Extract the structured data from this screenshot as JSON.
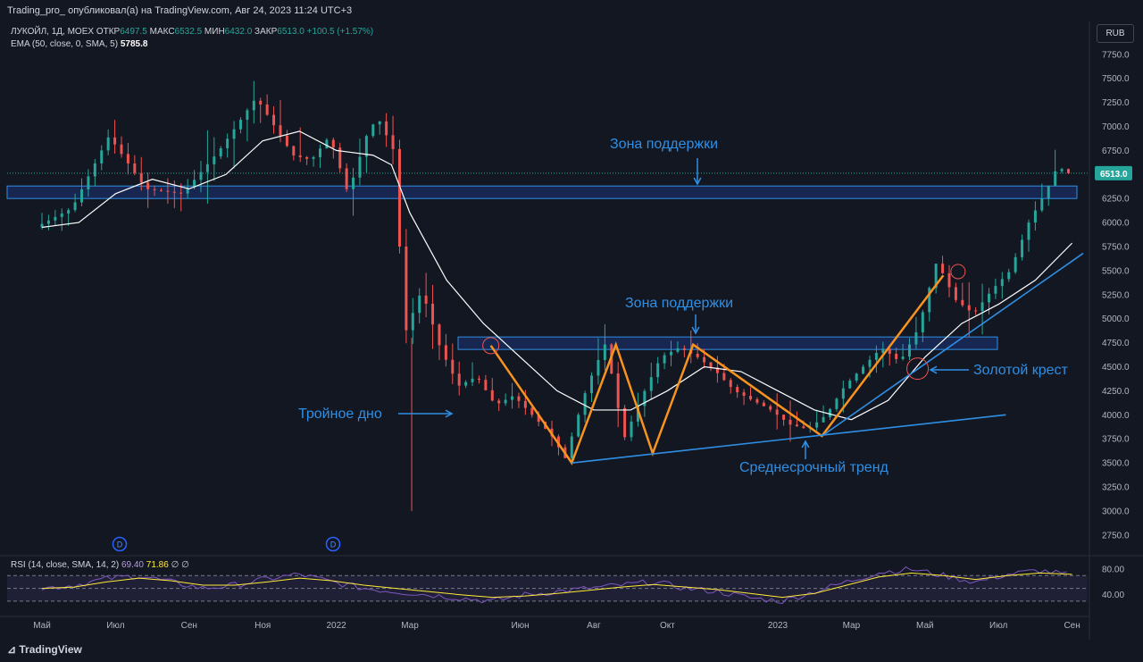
{
  "header": {
    "publisher_line": "Trading_pro_ опубликовал(а) на TradingView.com, Авг 24, 2023 11:24 UTC+3"
  },
  "legend": {
    "symbol": "ЛУКОЙЛ, 1Д, MOEX",
    "open_label": "ОТКР",
    "open_value": "6497.5",
    "high_label": "МАКС",
    "high_value": "6532.5",
    "low_label": "МИН",
    "low_value": "6432.0",
    "close_label": "ЗАКР",
    "close_value": "6513.0",
    "change": "+100.5 (+1.57%)",
    "ema_label": "EMA (50, close, 0, SMA, 5)",
    "ema_value": "5785.8"
  },
  "rsi_legend": {
    "label": "RSI (14, close, SMA, 14, 2)",
    "value1": "69.40",
    "value2": "71.86",
    "extra": "∅ ∅"
  },
  "currency_button": "RUB",
  "footer_logo": "TradingView",
  "colors": {
    "background": "#131722",
    "up": "#26a69a",
    "down": "#ef5350",
    "ema": "#ffffff",
    "pattern": "#f7931e",
    "trend": "#2f8fe5",
    "zone": "#2962ff"
  },
  "chart_data": {
    "type": "candlestick",
    "price_axis": {
      "ticks": [
        7750,
        7500,
        7250,
        7000,
        6750,
        6500,
        6250,
        6000,
        5750,
        5500,
        5250,
        5000,
        4750,
        4500,
        4250,
        4000,
        3750,
        3500,
        3250,
        3000,
        2750
      ],
      "tick_labels": [
        "7750.0",
        "7500.0",
        "7250.0",
        "7000.0",
        "6750.0",
        "6500.0",
        "6250.0",
        "6000.0",
        "5750.0",
        "5500.0",
        "5250.0",
        "5000.0",
        "4750.0",
        "4500.0",
        "4250.0",
        "4000.0",
        "3750.0",
        "3500.0",
        "3250.0",
        "3000.0",
        "2750.0"
      ],
      "last_price": 6513.0,
      "last_price_label": "6513.0"
    },
    "time_axis": {
      "labels": [
        {
          "text": "Май",
          "month_index": 0
        },
        {
          "text": "Июл",
          "month_index": 2
        },
        {
          "text": "Сен",
          "month_index": 4
        },
        {
          "text": "Ноя",
          "month_index": 6
        },
        {
          "text": "2022",
          "month_index": 8
        },
        {
          "text": "Мар",
          "month_index": 10
        },
        {
          "text": "Июн",
          "month_index": 13
        },
        {
          "text": "Авг",
          "month_index": 15
        },
        {
          "text": "Окт",
          "month_index": 17
        },
        {
          "text": "2023",
          "month_index": 20
        },
        {
          "text": "Мар",
          "month_index": 22
        },
        {
          "text": "Май",
          "month_index": 24
        },
        {
          "text": "Июл",
          "month_index": 26
        },
        {
          "text": "Сен",
          "month_index": 28
        }
      ]
    },
    "price_path": [
      [
        0,
        5950
      ],
      [
        1,
        6150
      ],
      [
        2,
        6900
      ],
      [
        3,
        6350
      ],
      [
        4,
        6300
      ],
      [
        5,
        6750
      ],
      [
        6,
        7300
      ],
      [
        7,
        6700
      ],
      [
        7.5,
        6650
      ],
      [
        8,
        6900
      ],
      [
        8.5,
        6300
      ],
      [
        9,
        6900
      ],
      [
        9.3,
        7100
      ],
      [
        9.8,
        6700
      ],
      [
        10,
        4800
      ],
      [
        10.5,
        5300
      ],
      [
        11,
        4700
      ],
      [
        11.5,
        4300
      ],
      [
        12,
        4400
      ],
      [
        12.5,
        4100
      ],
      [
        13,
        4200
      ],
      [
        13.5,
        4000
      ],
      [
        14,
        3800
      ],
      [
        14.4,
        3550
      ],
      [
        15,
        4300
      ],
      [
        15.5,
        4750
      ],
      [
        16,
        3750
      ],
      [
        16.5,
        4200
      ],
      [
        17,
        4600
      ],
      [
        17.5,
        4700
      ],
      [
        18,
        4600
      ],
      [
        18.5,
        4450
      ],
      [
        19,
        4250
      ],
      [
        19.5,
        4150
      ],
      [
        20,
        4050
      ],
      [
        20.5,
        3900
      ],
      [
        21,
        3850
      ],
      [
        21.5,
        4000
      ],
      [
        22,
        4300
      ],
      [
        22.5,
        4500
      ],
      [
        23,
        4700
      ],
      [
        23.5,
        4550
      ],
      [
        24,
        4900
      ],
      [
        24.5,
        5600
      ],
      [
        25,
        5200
      ],
      [
        25.5,
        5050
      ],
      [
        26,
        5300
      ],
      [
        26.5,
        5500
      ],
      [
        27,
        6000
      ],
      [
        27.5,
        6350
      ],
      [
        27.8,
        6600
      ],
      [
        28,
        6513
      ]
    ],
    "ema_path": [
      [
        0,
        5950
      ],
      [
        1,
        6000
      ],
      [
        2,
        6300
      ],
      [
        3,
        6450
      ],
      [
        4,
        6350
      ],
      [
        5,
        6500
      ],
      [
        6,
        6850
      ],
      [
        7,
        6950
      ],
      [
        8,
        6750
      ],
      [
        9,
        6700
      ],
      [
        9.5,
        6600
      ],
      [
        10,
        6100
      ],
      [
        11,
        5400
      ],
      [
        12,
        4950
      ],
      [
        13,
        4600
      ],
      [
        14,
        4250
      ],
      [
        15,
        4050
      ],
      [
        16,
        4050
      ],
      [
        17,
        4250
      ],
      [
        18,
        4500
      ],
      [
        19,
        4450
      ],
      [
        20,
        4250
      ],
      [
        21,
        4050
      ],
      [
        22,
        3950
      ],
      [
        23,
        4150
      ],
      [
        24,
        4600
      ],
      [
        25,
        4950
      ],
      [
        26,
        5150
      ],
      [
        27,
        5400
      ],
      [
        28,
        5786
      ]
    ],
    "rsi": {
      "levels": [
        70,
        50,
        30
      ],
      "tick_labels": [
        "80.00",
        "40.00"
      ],
      "ticks": [
        80,
        40
      ],
      "range": [
        20,
        90
      ],
      "values": [
        50,
        55,
        65,
        70,
        60,
        50,
        55,
        65,
        72,
        60,
        50,
        45,
        40,
        35,
        30,
        40,
        45,
        50,
        55,
        60,
        50,
        45,
        35,
        30,
        45,
        60,
        75,
        80,
        70,
        60,
        72,
        78,
        70
      ],
      "ma_values": [
        50,
        52,
        60,
        66,
        62,
        55,
        55,
        60,
        66,
        62,
        55,
        50,
        45,
        40,
        36,
        38,
        42,
        47,
        52,
        56,
        52,
        48,
        42,
        36,
        42,
        55,
        68,
        74,
        70,
        64,
        70,
        74,
        72
      ]
    },
    "annotations": [
      {
        "text": "Зона поддержки",
        "kind": "label"
      },
      {
        "text": "Зона поддержки",
        "kind": "label"
      },
      {
        "text": "Тройное дно",
        "kind": "label"
      },
      {
        "text": "Среднесрочный тренд",
        "kind": "label"
      },
      {
        "text": "Золотой крест",
        "kind": "label"
      }
    ],
    "support_zones": [
      {
        "from": 6250,
        "to": 6380
      },
      {
        "from": 4680,
        "to": 4810
      }
    ],
    "dividend_markers": [
      "D",
      "D"
    ]
  }
}
